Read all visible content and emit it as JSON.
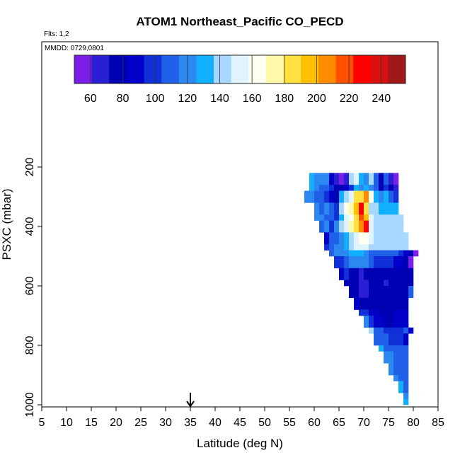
{
  "chart_data": {
    "type": "heatmap",
    "title": "ATOM1 Northeast_Pacific CO_PECD",
    "flights_label": "Flts: 1,2",
    "date_label": "MMDD: 0729,0801",
    "xlabel": "Latitude (deg N)",
    "ylabel": "PSXC (mbar)",
    "xlim": [
      5,
      85
    ],
    "ylim": [
      1000,
      100
    ],
    "x_ticks": [
      "5",
      "10",
      "15",
      "20",
      "25",
      "30",
      "35",
      "40",
      "45",
      "50",
      "55",
      "60",
      "65",
      "70",
      "75",
      "80",
      "85"
    ],
    "y_ticks": [
      "200",
      "400",
      "600",
      "800",
      "1000"
    ],
    "marker_latitude": 35,
    "colorbar": {
      "range": [
        50,
        255
      ],
      "ticks": [
        "60",
        "80",
        "100",
        "120",
        "140",
        "160",
        "180",
        "200",
        "220",
        "240"
      ],
      "colors": [
        "#7a1ee8",
        "#2a1fd2",
        "#0000b4",
        "#0000c8",
        "#1030d8",
        "#2060e8",
        "#2a88f0",
        "#10b0ff",
        "#a8d8ff",
        "#e0f4ff",
        "#fffff0",
        "#fff8a8",
        "#ffe040",
        "#ffc000",
        "#ff8c00",
        "#ff5000",
        "#ff0000",
        "#d81010",
        "#a01818"
      ]
    },
    "bin_lat_step": 1,
    "bin_pres_step": 20,
    "cells": [
      {
        "p": 220,
        "lat0": 59.0,
        "values": [
          130,
          125,
          120,
          115,
          90,
          70,
          60,
          70,
          140,
          150,
          130,
          120,
          140,
          110,
          80,
          110,
          70,
          60
        ]
      },
      {
        "p": 240,
        "lat0": 59.0,
        "values": [
          130,
          125,
          120,
          115,
          90,
          70,
          60,
          70,
          140,
          150,
          130,
          120,
          140,
          110,
          80,
          110,
          70,
          60
        ]
      },
      {
        "p": 260,
        "lat0": 59.0,
        "values": [
          130,
          120,
          110,
          105,
          95,
          80,
          80,
          90,
          100,
          130,
          120,
          135,
          120,
          110,
          80,
          100,
          80,
          70
        ]
      },
      {
        "p": 280,
        "lat0": 58.0,
        "values": [
          120,
          125,
          110,
          105,
          100,
          90,
          80,
          130,
          140,
          150,
          190,
          180,
          210,
          160,
          130,
          120,
          130,
          110,
          100
        ]
      },
      {
        "p": 300,
        "lat0": 58.0,
        "values": [
          120,
          125,
          110,
          105,
          100,
          90,
          80,
          130,
          140,
          150,
          190,
          180,
          210,
          160,
          130,
          120,
          130,
          110,
          100
        ]
      },
      {
        "p": 320,
        "lat0": 60.0,
        "values": [
          120,
          110,
          115,
          110,
          100,
          140,
          160,
          170,
          200,
          230,
          190,
          145,
          140,
          135,
          130,
          130,
          130
        ]
      },
      {
        "p": 340,
        "lat0": 60.0,
        "values": [
          120,
          110,
          115,
          110,
          100,
          140,
          160,
          170,
          200,
          230,
          190,
          145,
          140,
          135,
          130,
          130,
          130
        ]
      },
      {
        "p": 360,
        "lat0": 60.0,
        "values": [
          115,
          120,
          110,
          105,
          100,
          130,
          150,
          160,
          190,
          220,
          200,
          150,
          145,
          140,
          140,
          140,
          140,
          140
        ]
      },
      {
        "p": 380,
        "lat0": 61.0,
        "values": [
          110,
          115,
          100,
          120,
          140,
          150,
          170,
          180,
          210,
          230,
          150,
          145,
          145,
          145,
          145,
          145,
          145
        ]
      },
      {
        "p": 400,
        "lat0": 61.0,
        "values": [
          110,
          115,
          100,
          120,
          140,
          150,
          170,
          180,
          210,
          230,
          150,
          145,
          145,
          145,
          145,
          145,
          145
        ]
      },
      {
        "p": 420,
        "lat0": 62.0,
        "values": [
          90,
          105,
          110,
          120,
          130,
          140,
          150,
          160,
          160,
          150,
          145,
          145,
          145,
          145,
          145,
          145,
          145
        ]
      },
      {
        "p": 440,
        "lat0": 62.0,
        "values": [
          90,
          105,
          110,
          120,
          130,
          140,
          150,
          160,
          160,
          150,
          145,
          145,
          145,
          145,
          145,
          145,
          145
        ]
      },
      {
        "p": 460,
        "lat0": 62.0,
        "values": [
          95,
          110,
          115,
          125,
          130,
          140,
          150,
          155,
          150,
          145,
          145,
          145,
          145,
          145,
          145,
          145,
          145
        ]
      },
      {
        "p": 480,
        "lat0": 63.0,
        "values": [
          105,
          115,
          120,
          125,
          130,
          135,
          130,
          120,
          110,
          110,
          110,
          105,
          110,
          105,
          100,
          90,
          80,
          60
        ]
      },
      {
        "p": 500,
        "lat0": 64.0,
        "values": [
          95,
          100,
          110,
          120,
          125,
          125,
          115,
          105,
          100,
          100,
          100,
          95,
          90,
          85,
          80,
          60
        ]
      },
      {
        "p": 520,
        "lat0": 64.0,
        "values": [
          95,
          100,
          110,
          120,
          125,
          125,
          115,
          105,
          100,
          100,
          100,
          95,
          90,
          85,
          80,
          60
        ]
      },
      {
        "p": 540,
        "lat0": 65.0,
        "values": [
          90,
          100,
          80,
          75,
          70,
          72,
          75,
          78,
          76,
          74,
          75,
          80,
          78,
          76,
          80
        ]
      },
      {
        "p": 560,
        "lat0": 65.0,
        "values": [
          90,
          100,
          80,
          75,
          70,
          72,
          75,
          78,
          76,
          74,
          75,
          80,
          78,
          76,
          80
        ]
      },
      {
        "p": 580,
        "lat0": 66.0,
        "values": [
          80,
          75,
          72,
          70,
          70,
          72,
          74,
          72,
          70,
          72,
          74,
          76,
          78,
          80
        ]
      },
      {
        "p": 600,
        "lat0": 67.0,
        "values": [
          75,
          72,
          70,
          70,
          72,
          74,
          75,
          74,
          72,
          74,
          76,
          78,
          110
        ]
      },
      {
        "p": 620,
        "lat0": 67.0,
        "values": [
          75,
          72,
          70,
          70,
          72,
          74,
          75,
          74,
          72,
          74,
          76,
          78,
          110
        ]
      },
      {
        "p": 640,
        "lat0": 68.0,
        "values": [
          85,
          82,
          80,
          78,
          76,
          78,
          80,
          82,
          80,
          80,
          82
        ]
      },
      {
        "p": 660,
        "lat0": 68.0,
        "values": [
          85,
          82,
          80,
          78,
          76,
          78,
          80,
          82,
          80,
          80,
          82
        ]
      },
      {
        "p": 680,
        "lat0": 69.0,
        "values": [
          100,
          95,
          90,
          85,
          82,
          80,
          82,
          85,
          84,
          90
        ]
      },
      {
        "p": 700,
        "lat0": 70.0,
        "values": [
          120,
          100,
          90,
          85,
          80,
          82,
          84,
          86,
          90
        ]
      },
      {
        "p": 720,
        "lat0": 70.0,
        "values": [
          120,
          100,
          90,
          85,
          80,
          82,
          84,
          86,
          90
        ]
      },
      {
        "p": 740,
        "lat0": 71.0,
        "values": [
          140,
          110,
          105,
          100,
          98,
          96,
          100,
          110,
          90
        ]
      },
      {
        "p": 760,
        "lat0": 72.0,
        "values": [
          110,
          108,
          105,
          100,
          98,
          100,
          90
        ]
      },
      {
        "p": 780,
        "lat0": 72.0,
        "values": [
          110,
          108,
          105,
          100,
          98,
          100,
          90
        ]
      },
      {
        "p": 800,
        "lat0": 73.0,
        "values": [
          130,
          110,
          112,
          108,
          110,
          112
        ]
      },
      {
        "p": 820,
        "lat0": 74.0,
        "values": [
          120,
          115,
          110,
          112,
          114
        ]
      },
      {
        "p": 840,
        "lat0": 74.0,
        "values": [
          120,
          115,
          110,
          112,
          114
        ]
      },
      {
        "p": 860,
        "lat0": 75.0,
        "values": [
          118,
          112,
          110,
          112
        ]
      },
      {
        "p": 880,
        "lat0": 75.0,
        "values": [
          118,
          112,
          110,
          112
        ]
      },
      {
        "p": 900,
        "lat0": 76.0,
        "values": [
          115,
          112,
          108
        ]
      },
      {
        "p": 920,
        "lat0": 77.0,
        "values": [
          130,
          110
        ]
      },
      {
        "p": 940,
        "lat0": 77.0,
        "values": [
          130,
          110
        ]
      },
      {
        "p": 960,
        "lat0": 78.0,
        "values": [
          125
        ]
      },
      {
        "p": 980,
        "lat0": 78.0,
        "values": [
          135
        ]
      }
    ]
  }
}
